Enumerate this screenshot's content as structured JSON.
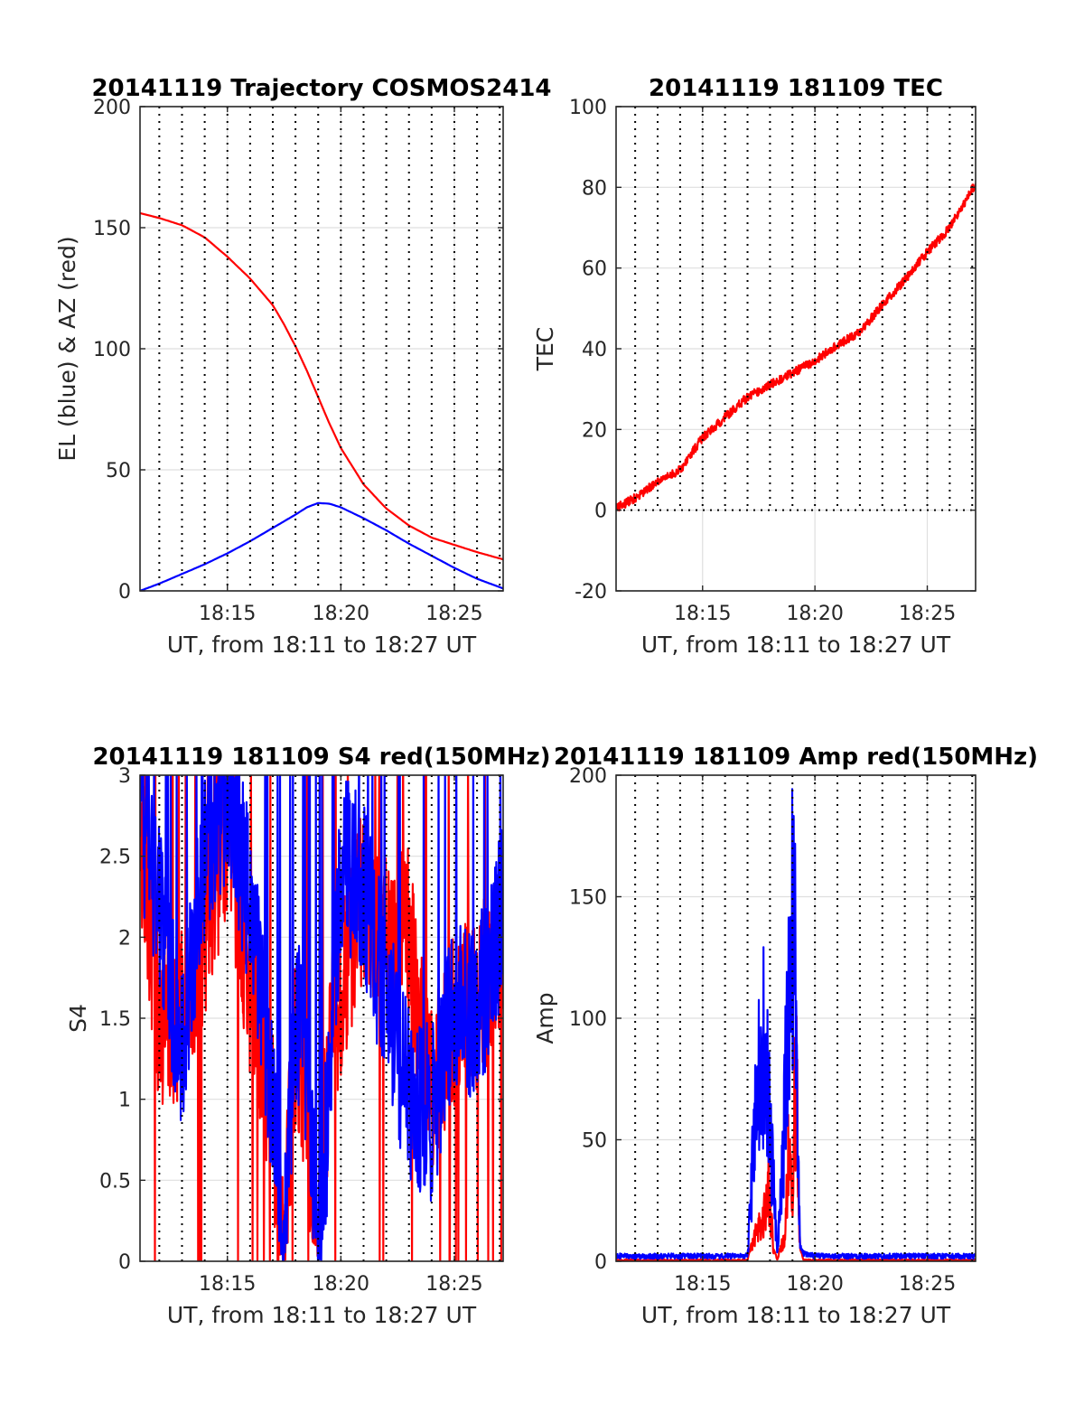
{
  "chart_data": [
    {
      "id": "trajectory",
      "type": "line",
      "title": "20141119 Trajectory COSMOS2414",
      "xlabel": "UT, from 18:11 to 18:27 UT",
      "ylabel": "EL (blue) & AZ (red)",
      "xlim": [
        "18:11:09",
        "18:27:09"
      ],
      "ylim": [
        0,
        200
      ],
      "x_ticks": [
        "18:15",
        "18:20",
        "18:25"
      ],
      "y_ticks": [
        "0",
        "50",
        "100",
        "150",
        "200"
      ],
      "grid": true,
      "minute_markers": true,
      "series": [
        {
          "color": "#ff0000",
          "x": [
            "18:11:09",
            "18:12:00",
            "18:13:00",
            "18:14:00",
            "18:15:00",
            "18:16:00",
            "18:17:00",
            "18:17:30",
            "18:18:00",
            "18:18:30",
            "18:19:00",
            "18:19:30",
            "18:20:00",
            "18:21:00",
            "18:22:00",
            "18:23:00",
            "18:24:00",
            "18:25:00",
            "18:26:00",
            "18:27:09"
          ],
          "values": [
            156,
            154,
            151,
            146,
            138,
            129,
            118,
            110,
            101,
            91,
            80,
            69,
            59,
            44,
            34,
            27,
            22,
            19,
            16,
            13
          ]
        },
        {
          "color": "#0000ff",
          "x": [
            "18:11:09",
            "18:12:00",
            "18:13:00",
            "18:14:00",
            "18:15:00",
            "18:16:00",
            "18:17:00",
            "18:18:00",
            "18:18:30",
            "18:19:00",
            "18:19:30",
            "18:20:00",
            "18:21:00",
            "18:22:00",
            "18:23:00",
            "18:24:00",
            "18:25:00",
            "18:26:00",
            "18:27:09"
          ],
          "values": [
            0,
            3,
            7,
            11,
            15.5,
            20.5,
            26,
            31.5,
            34.5,
            36.3,
            36,
            34.5,
            30,
            25,
            19.5,
            14.5,
            9.5,
            5,
            1
          ]
        }
      ]
    },
    {
      "id": "tec",
      "type": "line",
      "title": "20141119 181109 TEC",
      "xlabel": "UT, from 18:11 to 18:27 UT",
      "ylabel": "TEC",
      "xlim": [
        "18:11:09",
        "18:27:09"
      ],
      "ylim": [
        -20,
        100
      ],
      "x_ticks": [
        "18:15",
        "18:20",
        "18:25"
      ],
      "y_ticks": [
        "-20",
        "0",
        "20",
        "40",
        "60",
        "80",
        "100"
      ],
      "grid": true,
      "minute_markers": true,
      "series": [
        {
          "color": "#ff0000",
          "x": [
            "18:11:09",
            "18:12:00",
            "18:13:00",
            "18:14:00",
            "18:15:00",
            "18:16:00",
            "18:17:00",
            "18:18:00",
            "18:19:00",
            "18:20:00",
            "18:21:00",
            "18:22:00",
            "18:23:00",
            "18:24:00",
            "18:25:00",
            "18:26:00",
            "18:27:09"
          ],
          "values": [
            0.5,
            3,
            7,
            10,
            18,
            23,
            28,
            31,
            34,
            37,
            41,
            44,
            51,
            57,
            64,
            70,
            81
          ]
        }
      ]
    },
    {
      "id": "s4",
      "type": "line",
      "title": "20141119 181109 S4 red(150MHz)",
      "xlabel": "UT, from 18:11 to 18:27 UT",
      "ylabel": "S4",
      "xlim": [
        "18:11:09",
        "18:27:09"
      ],
      "ylim": [
        0,
        3
      ],
      "x_ticks": [
        "18:15",
        "18:20",
        "18:25"
      ],
      "y_ticks": [
        "0",
        "0.5",
        "1",
        "1.5",
        "2",
        "2.5",
        "3"
      ],
      "grid": true,
      "minute_markers": true,
      "series": [
        {
          "color": "#ff0000",
          "x": [
            "18:11:09",
            "18:12:00",
            "18:13:00",
            "18:14:00",
            "18:15:00",
            "18:16:00",
            "18:17:00",
            "18:17:30",
            "18:18:00",
            "18:18:30",
            "18:19:00",
            "18:19:30",
            "18:20:00",
            "18:21:00",
            "18:22:00",
            "18:23:00",
            "18:24:00",
            "18:25:00",
            "18:26:00",
            "18:27:09"
          ],
          "values": [
            2.7,
            1.5,
            1.5,
            2.0,
            2.7,
            1.7,
            0.9,
            0.1,
            1.4,
            0.9,
            0.15,
            1.3,
            1.6,
            2.3,
            2.0,
            2.0,
            1.0,
            1.5,
            1.6,
            2.0
          ],
          "range_min": 0,
          "range_max": 3
        },
        {
          "color": "#0000ff",
          "x": [
            "18:11:09",
            "18:12:00",
            "18:13:00",
            "18:14:00",
            "18:15:00",
            "18:16:00",
            "18:16:30",
            "18:17:00",
            "18:17:30",
            "18:18:00",
            "18:18:30",
            "18:19:00",
            "18:19:30",
            "18:20:00",
            "18:21:00",
            "18:22:00",
            "18:23:00",
            "18:24:00",
            "18:25:00",
            "18:26:00",
            "18:27:09"
          ],
          "values": [
            2.8,
            2.2,
            1.3,
            2.5,
            2.9,
            2.2,
            1.6,
            1.0,
            0.2,
            1.5,
            1.2,
            0.15,
            1.0,
            2.5,
            2.3,
            1.6,
            1.0,
            0.9,
            1.6,
            1.5,
            2.2
          ]
        }
      ]
    },
    {
      "id": "amp",
      "type": "line",
      "title": "20141119 181109 Amp red(150MHz)",
      "xlabel": "UT, from 18:11 to 18:27 UT",
      "ylabel": "Amp",
      "xlim": [
        "18:11:09",
        "18:27:09"
      ],
      "ylim": [
        0,
        200
      ],
      "x_ticks": [
        "18:15",
        "18:20",
        "18:25"
      ],
      "y_ticks": [
        "0",
        "50",
        "100",
        "150",
        "200"
      ],
      "grid": true,
      "minute_markers": true,
      "series": [
        {
          "color": "#ff0000",
          "x": [
            "18:11:09",
            "18:17:00",
            "18:17:20",
            "18:17:40",
            "18:17:55",
            "18:18:10",
            "18:18:20",
            "18:18:40",
            "18:18:50",
            "18:19:00",
            "18:19:10",
            "18:19:20",
            "18:19:30",
            "18:20:00",
            "18:27:09"
          ],
          "values": [
            0,
            0,
            15,
            22,
            45,
            5,
            0,
            15,
            65,
            45,
            120,
            5,
            0,
            0,
            0
          ]
        },
        {
          "color": "#0000ff",
          "x": [
            "18:11:09",
            "18:17:00",
            "18:17:20",
            "18:17:40",
            "18:17:55",
            "18:18:05",
            "18:18:20",
            "18:18:40",
            "18:18:55",
            "18:19:00",
            "18:19:10",
            "18:19:20",
            "18:19:30",
            "18:20:00",
            "18:27:09"
          ],
          "values": [
            1,
            1,
            80,
            126,
            100,
            60,
            3,
            90,
            165,
            183,
            150,
            5,
            2,
            1,
            1
          ]
        }
      ]
    }
  ]
}
